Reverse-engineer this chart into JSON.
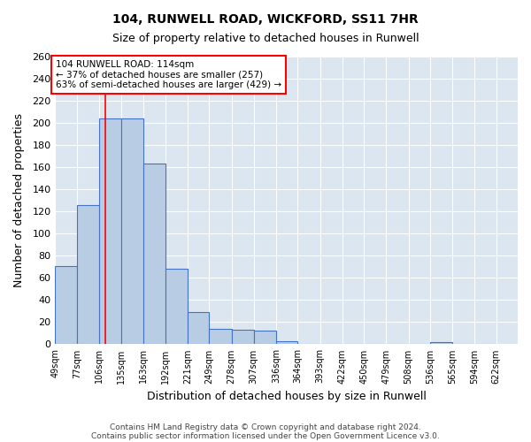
{
  "title1": "104, RUNWELL ROAD, WICKFORD, SS11 7HR",
  "title2": "Size of property relative to detached houses in Runwell",
  "xlabel": "Distribution of detached houses by size in Runwell",
  "ylabel": "Number of detached properties",
  "bin_labels": [
    "49sqm",
    "77sqm",
    "106sqm",
    "135sqm",
    "163sqm",
    "192sqm",
    "221sqm",
    "249sqm",
    "278sqm",
    "307sqm",
    "336sqm",
    "364sqm",
    "393sqm",
    "422sqm",
    "450sqm",
    "479sqm",
    "508sqm",
    "536sqm",
    "565sqm",
    "594sqm",
    "622sqm"
  ],
  "bar_values": [
    71,
    126,
    204,
    204,
    163,
    68,
    29,
    14,
    13,
    12,
    3,
    0,
    0,
    0,
    0,
    0,
    0,
    2,
    0,
    0
  ],
  "bar_color": "#b8cce4",
  "bar_edge_color": "#4472c4",
  "bg_color": "#dce6f1",
  "grid_color": "#ffffff",
  "red_line_x": 114,
  "bin_edges": [
    49,
    77,
    106,
    135,
    163,
    192,
    221,
    249,
    278,
    307,
    336,
    364,
    393,
    422,
    450,
    479,
    508,
    536,
    565,
    594,
    622
  ],
  "annotation_title": "104 RUNWELL ROAD: 114sqm",
  "annotation_line1": "← 37% of detached houses are smaller (257)",
  "annotation_line2": "63% of semi-detached houses are larger (429) →",
  "ylim": [
    0,
    260
  ],
  "yticks": [
    0,
    20,
    40,
    60,
    80,
    100,
    120,
    140,
    160,
    180,
    200,
    220,
    240,
    260
  ],
  "footer1": "Contains HM Land Registry data © Crown copyright and database right 2024.",
  "footer2": "Contains public sector information licensed under the Open Government Licence v3.0."
}
